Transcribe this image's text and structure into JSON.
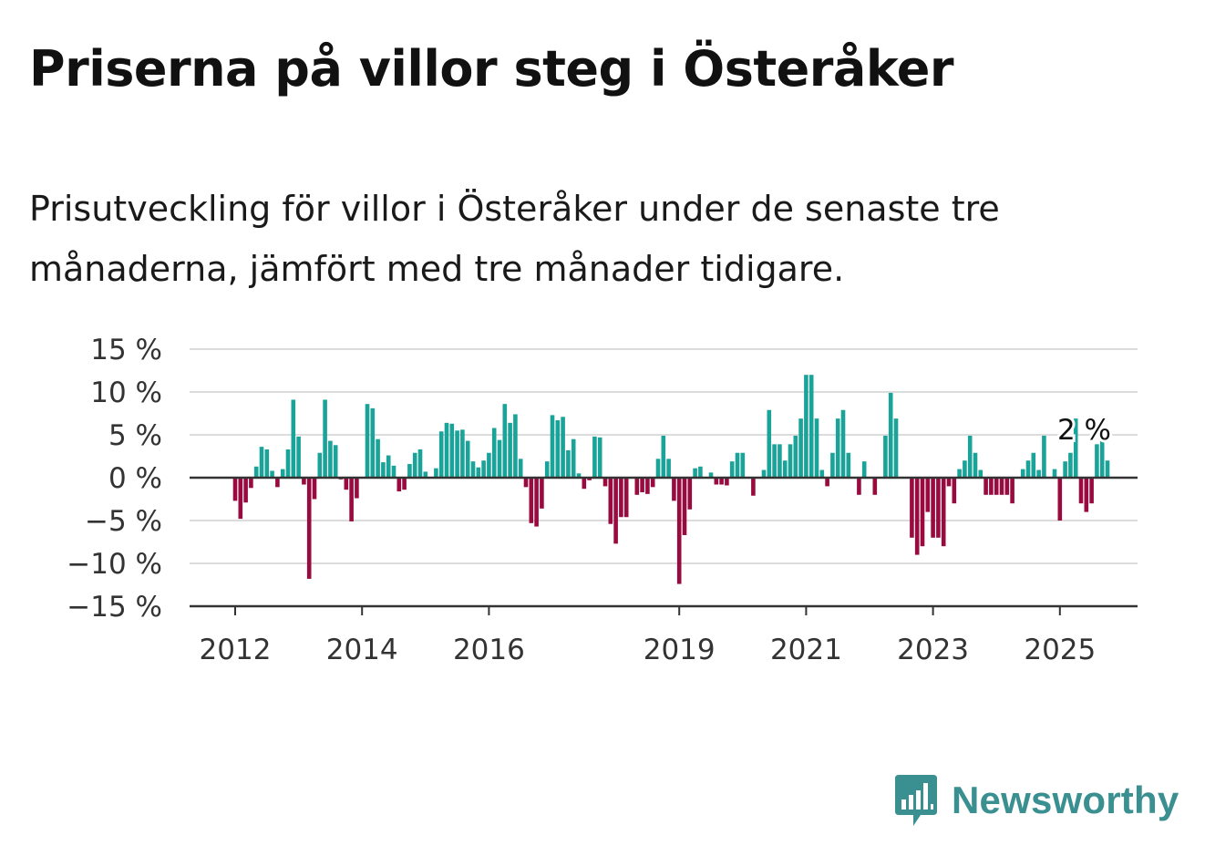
{
  "title": "Priserna på villor steg i Österåker",
  "subtitle": "Prisutveckling för villor i Österåker under de senaste tre månaderna, jämfört med tre månader tidigare.",
  "brand": {
    "name": "Newsworthy",
    "icon": "newsworthy-logo-icon",
    "color": "#3a8f90"
  },
  "colors": {
    "positive": "#1aa399",
    "negative": "#990a3f",
    "grid": "#dcdcdc",
    "axis": "#333333"
  },
  "chart_data": {
    "type": "bar",
    "ylim": [
      -15,
      15
    ],
    "y_ticks": [
      15,
      10,
      5,
      0,
      -5,
      -10,
      -15
    ],
    "y_tick_labels": [
      "15 %",
      "10 %",
      "5 %",
      "0 %",
      "−5 %",
      "−10 %",
      "−15 %"
    ],
    "x_ticks": [
      {
        "label": "2012",
        "index": 0
      },
      {
        "label": "2014",
        "index": 24
      },
      {
        "label": "2016",
        "index": 48
      },
      {
        "label": "2019",
        "index": 84
      },
      {
        "label": "2021",
        "index": 108
      },
      {
        "label": "2023",
        "index": 132
      },
      {
        "label": "2025",
        "index": 156
      }
    ],
    "start": "2012-01",
    "annotation": "2 %",
    "grid": true,
    "values": [
      -2.7,
      -4.8,
      -2.9,
      -1.2,
      1.3,
      3.6,
      3.3,
      0.8,
      -1.1,
      1.0,
      3.3,
      9.1,
      4.8,
      -0.8,
      -11.8,
      -2.5,
      2.9,
      9.1,
      4.3,
      3.8,
      -0.2,
      -1.4,
      -5.1,
      -2.4,
      0.1,
      8.6,
      8.1,
      4.5,
      1.8,
      2.6,
      1.4,
      -1.6,
      -1.4,
      1.6,
      2.9,
      3.3,
      0.7,
      0.1,
      1.1,
      5.4,
      6.4,
      6.3,
      5.5,
      5.6,
      4.3,
      1.9,
      1.2,
      2.0,
      2.9,
      5.8,
      4.4,
      8.6,
      6.4,
      7.4,
      2.2,
      -1.1,
      -5.3,
      -5.7,
      -3.6,
      1.9,
      7.3,
      6.7,
      7.1,
      3.2,
      4.5,
      0.5,
      -1.3,
      -0.3,
      4.8,
      4.7,
      -1.0,
      -5.4,
      -7.7,
      -4.6,
      -4.6,
      -0.1,
      -2.0,
      -1.7,
      -1.9,
      -1.1,
      2.2,
      4.9,
      2.2,
      -2.7,
      -12.4,
      -6.7,
      -3.7,
      1.1,
      1.3,
      0.1,
      0.6,
      -0.8,
      -0.8,
      -0.9,
      1.9,
      2.9,
      2.9,
      0.0,
      -2.1,
      0.0,
      0.9,
      7.9,
      3.9,
      3.9,
      2.0,
      3.9,
      4.9,
      6.9,
      12.0,
      12.0,
      6.9,
      0.9,
      -1.0,
      2.9,
      6.9,
      7.9,
      2.9,
      -0.1,
      -2.0,
      1.9,
      -0.1,
      -2.0,
      0.0,
      4.9,
      9.9,
      6.9,
      0.0,
      0.0,
      -7.0,
      -9.0,
      -8.0,
      -4.0,
      -7.0,
      -7.0,
      -8.0,
      -1.0,
      -3.0,
      1.0,
      2.0,
      4.9,
      2.9,
      0.9,
      -2.0,
      -2.0,
      -2.0,
      -2.0,
      -2.0,
      -3.0,
      0.0,
      1.0,
      2.0,
      2.9,
      0.9,
      4.9,
      0.0,
      1.0,
      -5.0,
      1.9,
      2.9,
      6.9,
      -3.0,
      -4.0,
      -3.0,
      3.9,
      4.9,
      2.0
    ]
  }
}
